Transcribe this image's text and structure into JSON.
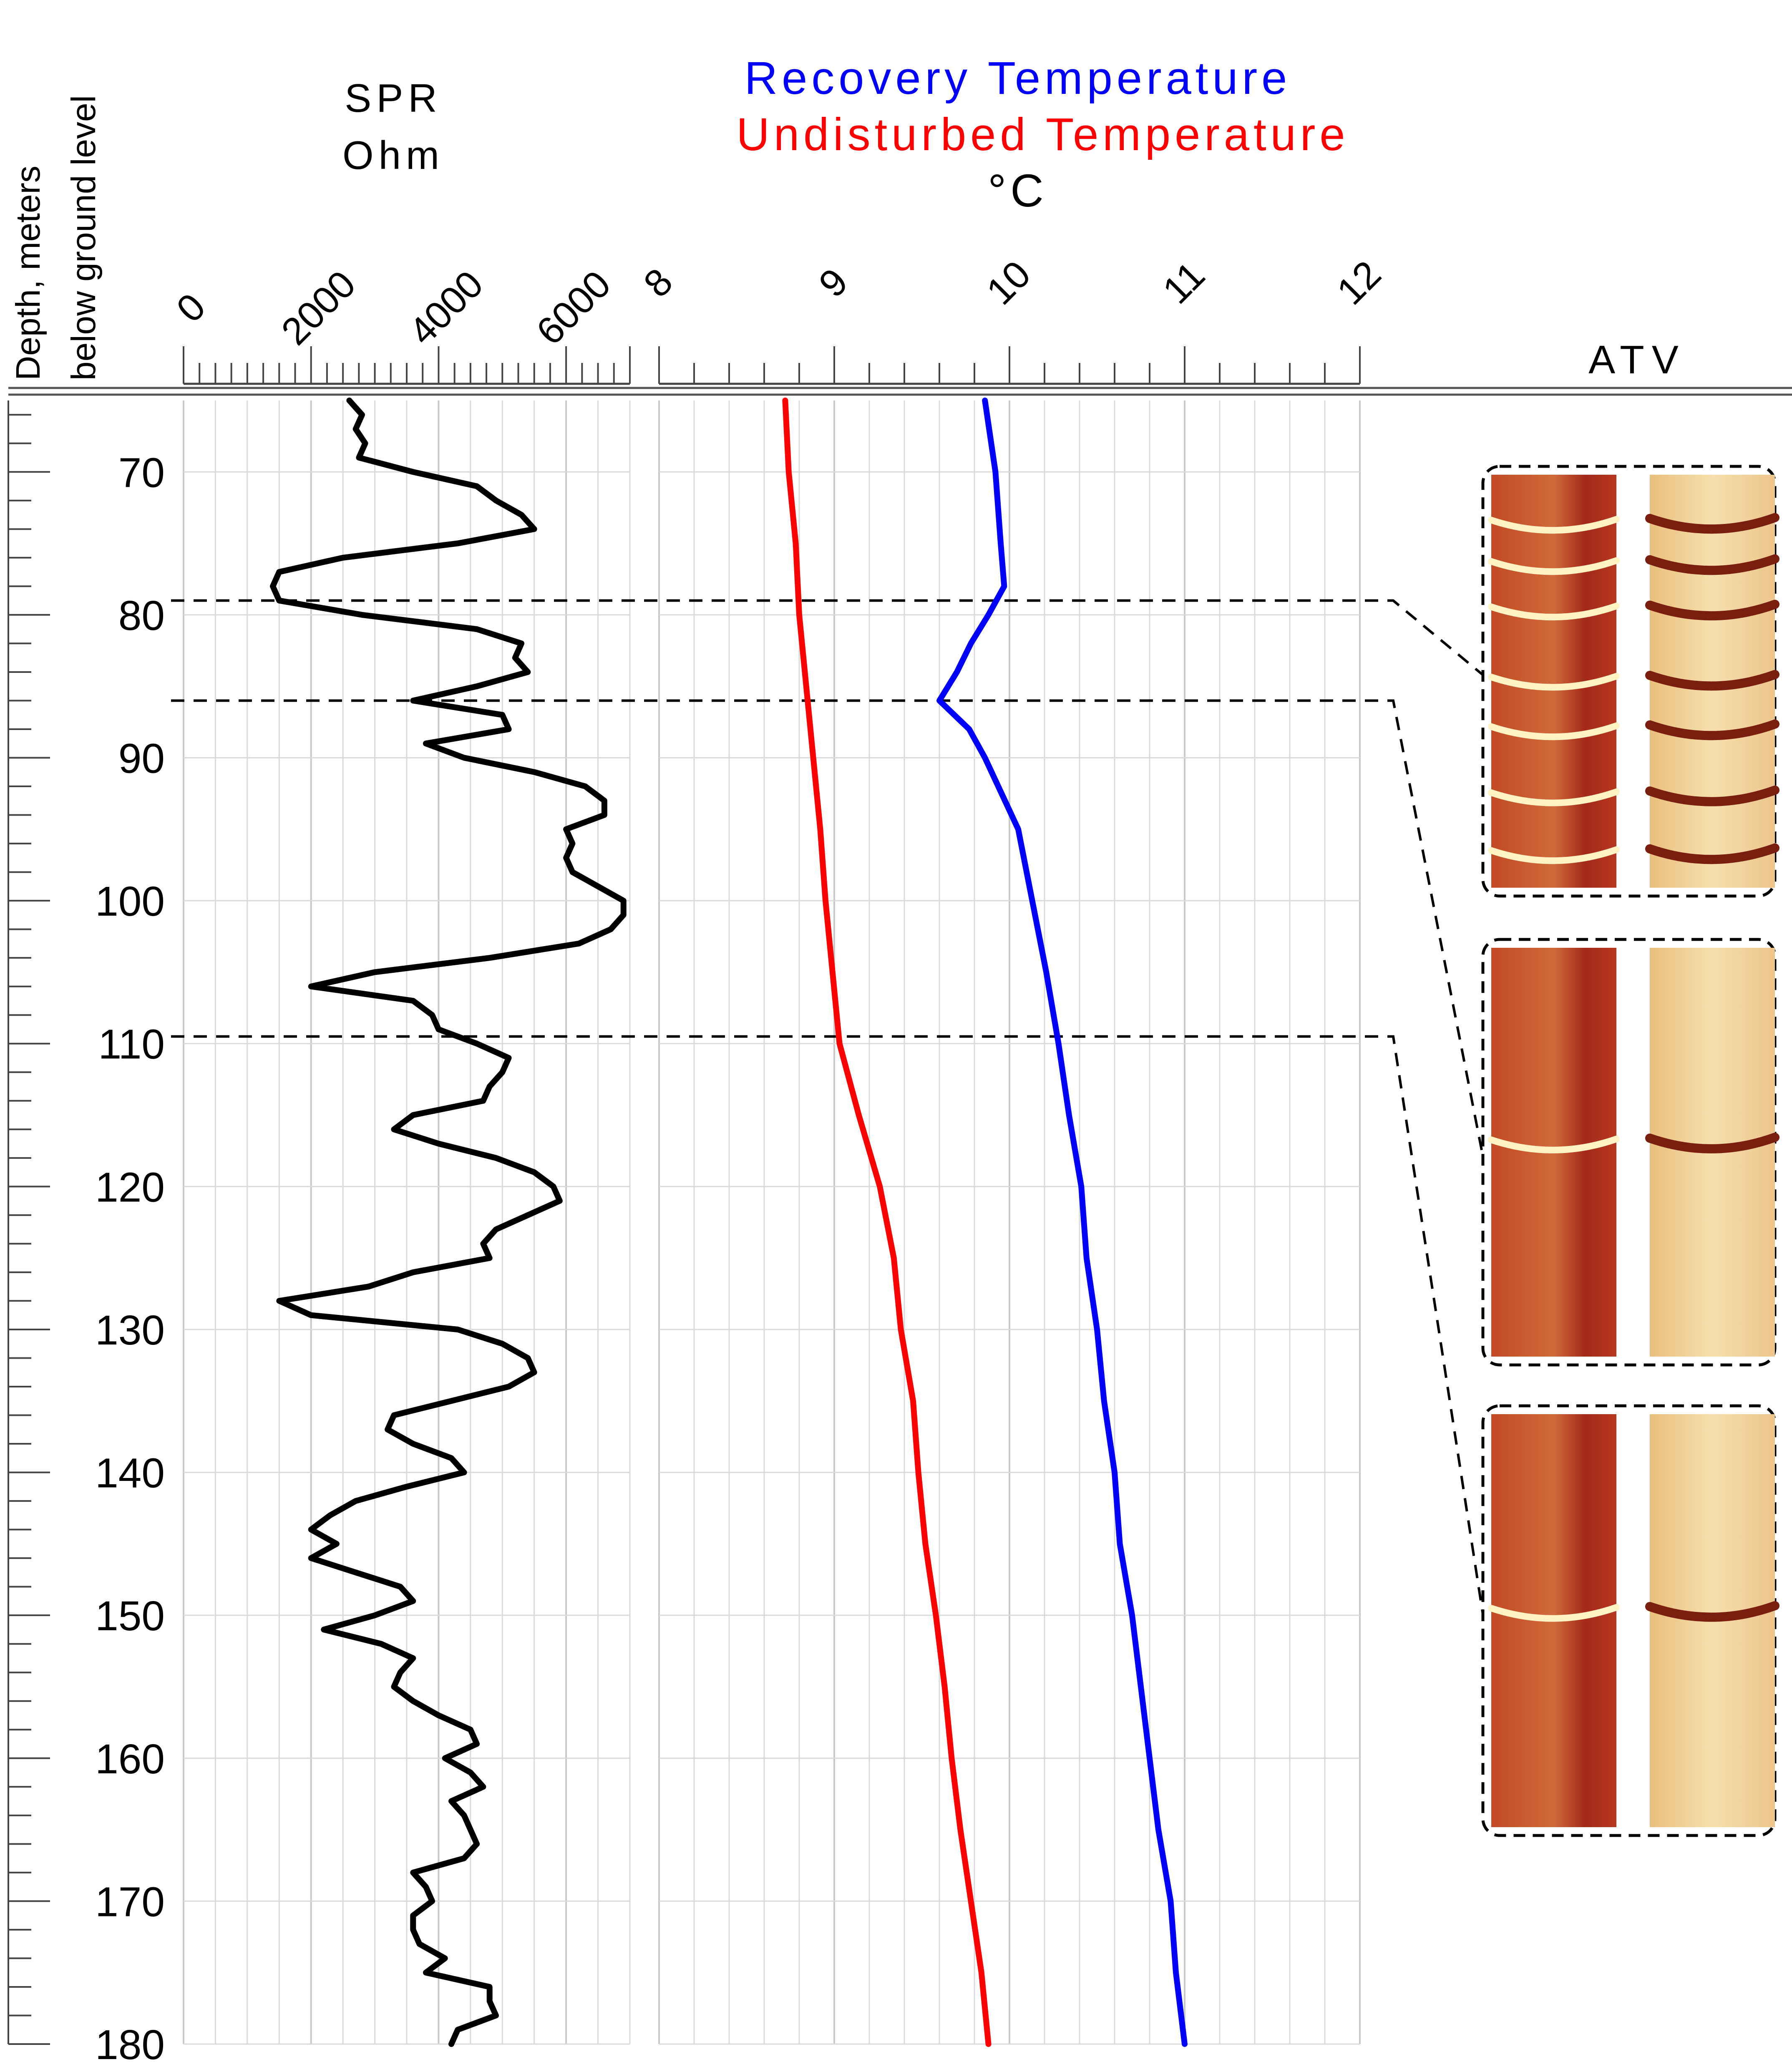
{
  "depth_axis": {
    "label_line1": "Depth, meters",
    "label_line2": "below ground level",
    "ticks": [
      "70",
      "80",
      "90",
      "100",
      "110",
      "120",
      "130",
      "140",
      "150",
      "160",
      "170",
      "180"
    ]
  },
  "spr_track": {
    "title": "SPR",
    "unit": "Ohm",
    "ticks": [
      "0",
      "2000",
      "4000",
      "6000"
    ]
  },
  "temp_track": {
    "title_recovery": "Recovery Temperature",
    "title_undisturbed": "Undisturbed Temperature",
    "unit": "°C",
    "ticks": [
      "8",
      "9",
      "10",
      "11",
      "12"
    ]
  },
  "atv_track": {
    "title": "ATV"
  },
  "colors": {
    "spr": "#000000",
    "recovery": "#0000ff",
    "undisturbed": "#ff0000",
    "grid": "#d9d9d9",
    "atv_dark": "#b5331c",
    "atv_light": "#f1cf8f"
  },
  "chart_data": {
    "type": "line",
    "ylabel": "Depth, meters below ground level",
    "ylim": [
      65,
      180
    ],
    "y_inverted": true,
    "tracks": [
      {
        "name": "SPR",
        "xlabel": "SPR Ohm",
        "xlim": [
          0,
          7000
        ],
        "series": [
          {
            "name": "SPR",
            "depth": [
              65,
              66,
              67,
              68,
              69,
              70,
              71,
              72,
              73,
              74,
              75,
              76,
              77,
              78,
              79,
              80,
              81,
              82,
              83,
              84,
              85,
              86,
              87,
              88,
              89,
              90,
              91,
              92,
              93,
              94,
              95,
              96,
              97,
              98,
              99,
              100,
              101,
              102,
              103,
              104,
              105,
              106,
              107,
              108,
              109,
              110,
              111,
              112,
              113,
              114,
              115,
              116,
              117,
              118,
              119,
              120,
              121,
              122,
              123,
              124,
              125,
              126,
              127,
              128,
              129,
              130,
              131,
              132,
              133,
              134,
              135,
              136,
              137,
              138,
              139,
              140,
              141,
              142,
              143,
              144,
              145,
              146,
              147,
              148,
              149,
              150,
              151,
              152,
              153,
              154,
              155,
              156,
              157,
              158,
              159,
              160,
              161,
              162,
              163,
              164,
              165,
              166,
              167,
              168,
              169,
              170,
              171,
              172,
              173,
              174,
              175,
              176,
              177,
              178,
              179,
              180
            ],
            "values": [
              2600,
              2800,
              2700,
              2850,
              2750,
              3600,
              4600,
              4900,
              5300,
              5500,
              4300,
              2500,
              1500,
              1400,
              1500,
              2800,
              4600,
              5300,
              5200,
              5400,
              4600,
              3600,
              5000,
              5100,
              3800,
              4400,
              5500,
              6300,
              6600,
              6600,
              6000,
              6100,
              6000,
              6100,
              6500,
              6900,
              6900,
              6700,
              6200,
              4800,
              3000,
              2000,
              3600,
              3900,
              4000,
              4600,
              5100,
              5000,
              4800,
              4700,
              3600,
              3300,
              4000,
              4900,
              5500,
              5800,
              5900,
              5400,
              4900,
              4700,
              4800,
              3600,
              2900,
              1500,
              2000,
              4300,
              5000,
              5400,
              5500,
              5100,
              4200,
              3300,
              3200,
              3600,
              4200,
              4400,
              3500,
              2700,
              2300,
              2000,
              2400,
              2000,
              2700,
              3400,
              3600,
              3000,
              2200,
              3100,
              3600,
              3400,
              3300,
              3600,
              4000,
              4500,
              4600,
              4100,
              4500,
              4700,
              4200,
              4400,
              4500,
              4600,
              4400,
              3600,
              3800,
              3900,
              3600,
              3600,
              3700,
              4100,
              3800,
              4800,
              4800,
              4900,
              4300,
              4200
            ],
            "comment": "values digitized from the plotted curve at 1 m steps (approximate)"
          }
        ]
      },
      {
        "name": "Temperature",
        "xlabel": "°C",
        "xlim": [
          8,
          12
        ],
        "series": [
          {
            "name": "Undisturbed Temperature",
            "depth": [
              65,
              70,
              75,
              80,
              85,
              90,
              95,
              100,
              105,
              110,
              115,
              120,
              125,
              130,
              135,
              140,
              145,
              150,
              155,
              160,
              165,
              170,
              175,
              180
            ],
            "values": [
              8.72,
              8.74,
              8.78,
              8.8,
              8.84,
              8.88,
              8.92,
              8.95,
              8.99,
              9.03,
              9.14,
              9.26,
              9.34,
              9.38,
              9.45,
              9.48,
              9.52,
              9.58,
              9.63,
              9.67,
              9.72,
              9.78,
              9.84,
              9.88
            ]
          },
          {
            "name": "Recovery Temperature",
            "depth": [
              65,
              70,
              75,
              78,
              80,
              82,
              84,
              86,
              88,
              90,
              95,
              100,
              105,
              110,
              115,
              120,
              125,
              130,
              135,
              140,
              145,
              150,
              155,
              160,
              165,
              170,
              175,
              180
            ],
            "values": [
              9.86,
              9.92,
              9.95,
              9.97,
              9.88,
              9.78,
              9.7,
              9.6,
              9.77,
              9.86,
              10.05,
              10.13,
              10.21,
              10.28,
              10.34,
              10.41,
              10.44,
              10.5,
              10.54,
              10.6,
              10.63,
              10.7,
              10.75,
              10.8,
              10.85,
              10.92,
              10.95,
              11.0
            ]
          }
        ]
      }
    ],
    "correlation_markers": [
      79,
      86,
      109.5
    ]
  }
}
